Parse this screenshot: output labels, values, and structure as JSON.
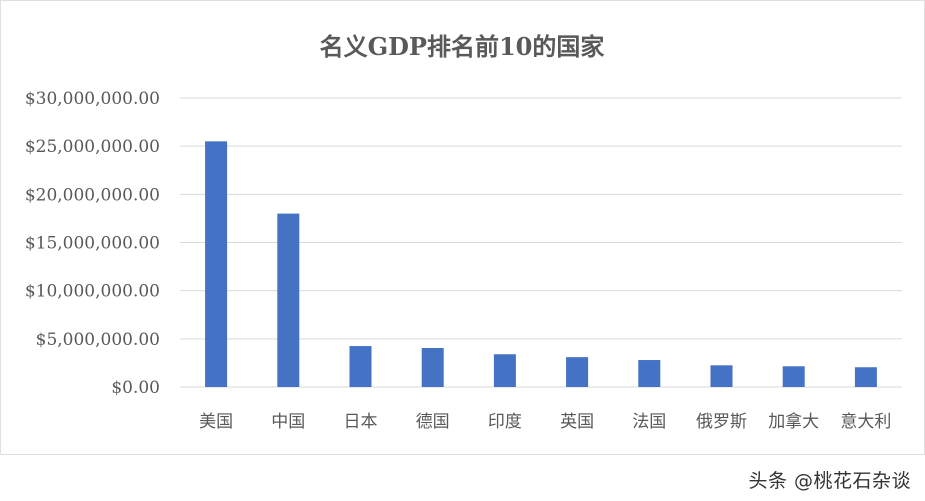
{
  "chart_data": {
    "type": "bar",
    "title": "名义GDP排名前10的国家",
    "categories": [
      "美国",
      "中国",
      "日本",
      "德国",
      "印度",
      "英国",
      "法国",
      "俄罗斯",
      "加拿大",
      "意大利"
    ],
    "values": [
      25500000,
      18000000,
      4250000,
      4050000,
      3400000,
      3100000,
      2800000,
      2250000,
      2150000,
      2050000
    ],
    "ylim": [
      0,
      30000000
    ],
    "yticks": [
      0,
      5000000,
      10000000,
      15000000,
      20000000,
      25000000,
      30000000
    ],
    "ytick_labels": [
      "$0.00",
      "$5,000,000.00",
      "$10,000,000.00",
      "$15,000,000.00",
      "$20,000,000.00",
      "$25,000,000.00",
      "$30,000,000.00"
    ],
    "xlabel": "",
    "ylabel": "",
    "grid": true,
    "legend": "none",
    "bar_color": "#4472c4",
    "grid_color": "#d9d9d9",
    "text_color": "#595959"
  },
  "watermark": "头条 @桃花石杂谈"
}
